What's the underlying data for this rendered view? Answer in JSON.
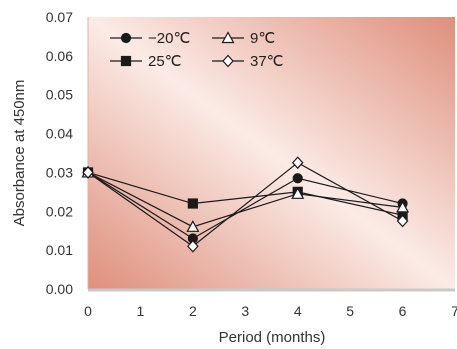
{
  "chart_data": {
    "type": "line",
    "xlabel": "Period (months)",
    "ylabel": "Absorbance at 450nm",
    "xlim": [
      0,
      7
    ],
    "ylim": [
      0,
      0.07
    ],
    "xticks": [
      "0",
      "1",
      "2",
      "3",
      "4",
      "5",
      "6",
      "7"
    ],
    "yticks": [
      "0.00",
      "0.01",
      "0.02",
      "0.03",
      "0.04",
      "0.05",
      "0.06",
      "0.07"
    ],
    "x": [
      0,
      2,
      4,
      6
    ],
    "series": [
      {
        "name": "−20℃",
        "marker": "circle-filled",
        "values": [
          0.03,
          0.013,
          0.0285,
          0.022
        ]
      },
      {
        "name": "25℃",
        "marker": "square-filled",
        "values": [
          0.03,
          0.022,
          0.025,
          0.019
        ]
      },
      {
        "name": "9℃",
        "marker": "triangle-open",
        "values": [
          0.03,
          0.016,
          0.0245,
          0.021
        ]
      },
      {
        "name": "37℃",
        "marker": "diamond-open",
        "values": [
          0.03,
          0.011,
          0.0325,
          0.0175
        ]
      }
    ],
    "legend_position": "top-left",
    "background": "diagonal-gradient",
    "colors": {
      "line": "#1a1a1a",
      "gradient_warm": "#de8f7c",
      "gradient_light": "#fbebe6",
      "axis": "#c9c9c9"
    }
  }
}
